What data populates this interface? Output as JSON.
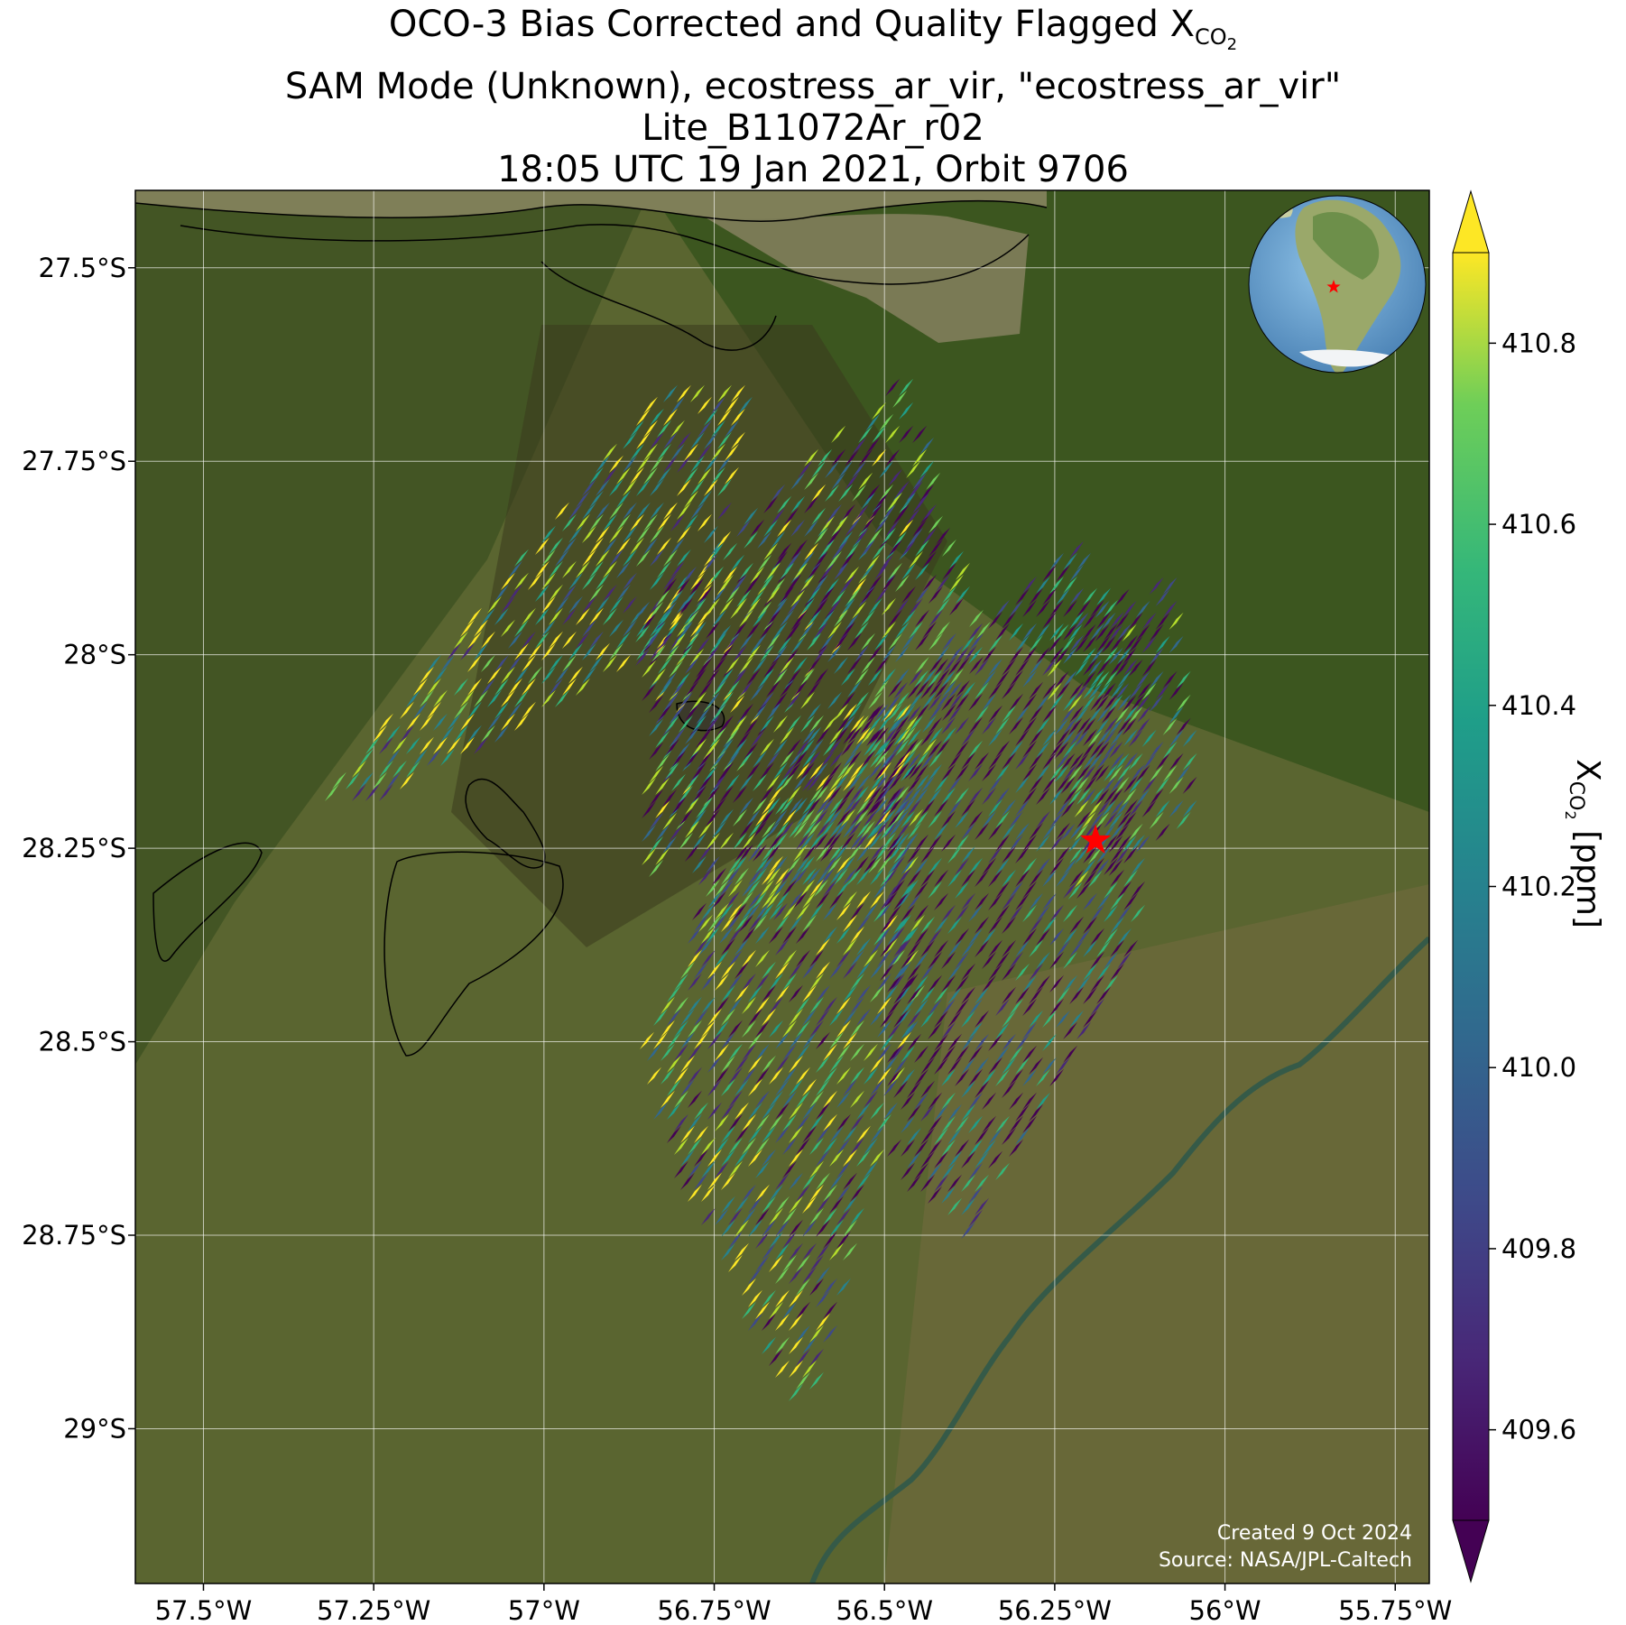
{
  "title": {
    "line1_prefix": "OCO-3 Bias Corrected and Quality Flagged X",
    "line1_sub": "CO",
    "line1_sub2": "2",
    "line2": "SAM Mode (Unknown), ecostress_ar_vir, \"ecostress_ar_vir\"",
    "line3": "Lite_B11072Ar_r02",
    "line4": "18:05 UTC 19 Jan 2021, Orbit 9706"
  },
  "credit": {
    "line1": "Created 9 Oct 2024",
    "line2": "Source: NASA/JPL-Caltech"
  },
  "colors": {
    "land_dark": "#3a4a1e",
    "land": "#4f5f2a",
    "river": "#7f7f58",
    "target_star": "#ff0000"
  },
  "chart_data": {
    "type": "map",
    "extent_lon": [
      -57.6,
      -55.7
    ],
    "extent_lat": [
      -29.2,
      -27.4
    ],
    "lon_ticks": [
      "57.5°W",
      "57.25°W",
      "57°W",
      "56.75°W",
      "56.5°W",
      "56.25°W",
      "56°W",
      "55.75°W"
    ],
    "lon_tick_values": [
      -57.5,
      -57.25,
      -57.0,
      -56.75,
      -56.5,
      -56.25,
      -56.0,
      -55.75
    ],
    "lat_ticks": [
      "27.5°S",
      "27.75°S",
      "28°S",
      "28.25°S",
      "28.5°S",
      "28.75°S",
      "29°S"
    ],
    "lat_tick_values": [
      -27.5,
      -27.75,
      -28.0,
      -28.25,
      -28.5,
      -28.75,
      -29.0
    ],
    "grid": true,
    "target": {
      "lon": -56.19,
      "lat": -28.24,
      "marker": "red-star"
    },
    "colorbar": {
      "label_prefix": "X",
      "label_sub": "CO",
      "label_sub2": "2",
      "label_suffix": " [ppm]",
      "range": [
        409.5,
        410.9
      ],
      "ticks": [
        "410.8",
        "410.6",
        "410.4",
        "410.2",
        "410.0",
        "409.8",
        "409.6"
      ],
      "tick_values": [
        410.8,
        410.6,
        410.4,
        410.2,
        410.0,
        409.8,
        409.6
      ],
      "colormap": "viridis",
      "extend": "both"
    },
    "inset_globe": {
      "target_marker": "red-star"
    }
  }
}
